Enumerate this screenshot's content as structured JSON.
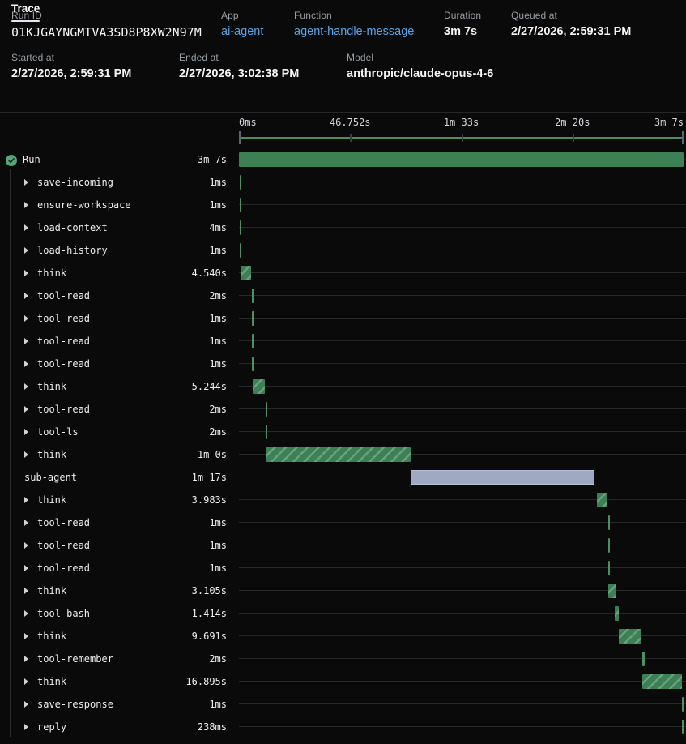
{
  "header": {
    "row1": [
      {
        "label": "Run ID",
        "value": "01KJGAYNGMTVA3SD8P8XW2N97M",
        "style": "mono"
      },
      {
        "label": "App",
        "value": "ai-agent",
        "style": "link"
      },
      {
        "label": "Function",
        "value": "agent-handle-message",
        "style": "link"
      },
      {
        "label": "Duration",
        "value": "3m 7s",
        "style": "plain"
      },
      {
        "label": "Queued at",
        "value": "2/27/2026, 2:59:31 PM",
        "style": "plain"
      }
    ],
    "row2": [
      {
        "label": "Started at",
        "value": "2/27/2026, 2:59:31 PM",
        "style": "plain"
      },
      {
        "label": "Ended at",
        "value": "2/27/2026, 3:02:38 PM",
        "style": "plain"
      },
      {
        "label": "Model",
        "value": "anthropic/claude-opus-4-6",
        "style": "plain"
      }
    ]
  },
  "tabs": {
    "trace_label": "Trace"
  },
  "timeline": {
    "ticks": [
      {
        "label": "0ms",
        "pct": 0
      },
      {
        "label": "46.752s",
        "pct": 25
      },
      {
        "label": "1m 33s",
        "pct": 50
      },
      {
        "label": "2m 20s",
        "pct": 75
      },
      {
        "label": "3m 7s",
        "pct": 100
      }
    ],
    "total_duration": "3m 7s"
  },
  "colors": {
    "background": "#0a0a0a",
    "bar_green": "#3e8055",
    "hatch_light_green": "#68a17d",
    "minimap_green": "#4d8c63",
    "agent_lavender": "#9fa9c4",
    "link_blue": "#57a5e8",
    "check_green": "#55a47a"
  },
  "spans": [
    {
      "name": "Run",
      "duration": "3m 7s",
      "kind": "run",
      "caret": false,
      "icon": "check-circle",
      "start_pct": 0,
      "width_pct": 100
    },
    {
      "name": "save-incoming",
      "duration": "1ms",
      "kind": "step",
      "caret": true,
      "start_pct": 0.2,
      "width_pct": 0.4
    },
    {
      "name": "ensure-workspace",
      "duration": "1ms",
      "kind": "step",
      "caret": true,
      "start_pct": 0.2,
      "width_pct": 0.4
    },
    {
      "name": "load-context",
      "duration": "4ms",
      "kind": "step",
      "caret": true,
      "start_pct": 0.2,
      "width_pct": 0.4
    },
    {
      "name": "load-history",
      "duration": "1ms",
      "kind": "step",
      "caret": true,
      "start_pct": 0.2,
      "width_pct": 0.4
    },
    {
      "name": "think",
      "duration": "4.540s",
      "kind": "think",
      "caret": true,
      "start_pct": 0.4,
      "width_pct": 2.4
    },
    {
      "name": "tool-read",
      "duration": "2ms",
      "kind": "step",
      "caret": true,
      "start_pct": 3.0,
      "width_pct": 0.4
    },
    {
      "name": "tool-read",
      "duration": "1ms",
      "kind": "step",
      "caret": true,
      "start_pct": 3.0,
      "width_pct": 0.4
    },
    {
      "name": "tool-read",
      "duration": "1ms",
      "kind": "step",
      "caret": true,
      "start_pct": 3.0,
      "width_pct": 0.4
    },
    {
      "name": "tool-read",
      "duration": "1ms",
      "kind": "step",
      "caret": true,
      "start_pct": 3.0,
      "width_pct": 0.4
    },
    {
      "name": "think",
      "duration": "5.244s",
      "kind": "think",
      "caret": true,
      "start_pct": 3.1,
      "width_pct": 2.8
    },
    {
      "name": "tool-read",
      "duration": "2ms",
      "kind": "step",
      "caret": true,
      "start_pct": 6.0,
      "width_pct": 0.4
    },
    {
      "name": "tool-ls",
      "duration": "2ms",
      "kind": "step",
      "caret": true,
      "start_pct": 6.0,
      "width_pct": 0.4
    },
    {
      "name": "think",
      "duration": "1m 0s",
      "kind": "think",
      "caret": true,
      "start_pct": 6.0,
      "width_pct": 32.6
    },
    {
      "name": "sub-agent",
      "duration": "1m 17s",
      "kind": "agent",
      "caret": false,
      "start_pct": 38.6,
      "width_pct": 41.3
    },
    {
      "name": "think",
      "duration": "3.983s",
      "kind": "think",
      "caret": true,
      "start_pct": 80.6,
      "width_pct": 2.1
    },
    {
      "name": "tool-read",
      "duration": "1ms",
      "kind": "step",
      "caret": true,
      "start_pct": 83.0,
      "width_pct": 0.4
    },
    {
      "name": "tool-read",
      "duration": "1ms",
      "kind": "step",
      "caret": true,
      "start_pct": 83.0,
      "width_pct": 0.4
    },
    {
      "name": "tool-read",
      "duration": "1ms",
      "kind": "step",
      "caret": true,
      "start_pct": 83.0,
      "width_pct": 0.4
    },
    {
      "name": "think",
      "duration": "3.105s",
      "kind": "think",
      "caret": true,
      "start_pct": 83.1,
      "width_pct": 1.7
    },
    {
      "name": "tool-bash",
      "duration": "1.414s",
      "kind": "think",
      "caret": true,
      "start_pct": 84.6,
      "width_pct": 0.8
    },
    {
      "name": "think",
      "duration": "9.691s",
      "kind": "think",
      "caret": true,
      "start_pct": 85.4,
      "width_pct": 5.2
    },
    {
      "name": "tool-remember",
      "duration": "2ms",
      "kind": "step",
      "caret": true,
      "start_pct": 90.8,
      "width_pct": 0.4
    },
    {
      "name": "think",
      "duration": "16.895s",
      "kind": "think",
      "caret": true,
      "start_pct": 90.7,
      "width_pct": 8.9
    },
    {
      "name": "save-response",
      "duration": "1ms",
      "kind": "step",
      "caret": true,
      "start_pct": 99.6,
      "width_pct": 0.4
    },
    {
      "name": "reply",
      "duration": "238ms",
      "kind": "step",
      "caret": true,
      "start_pct": 99.6,
      "width_pct": 0.4
    }
  ]
}
